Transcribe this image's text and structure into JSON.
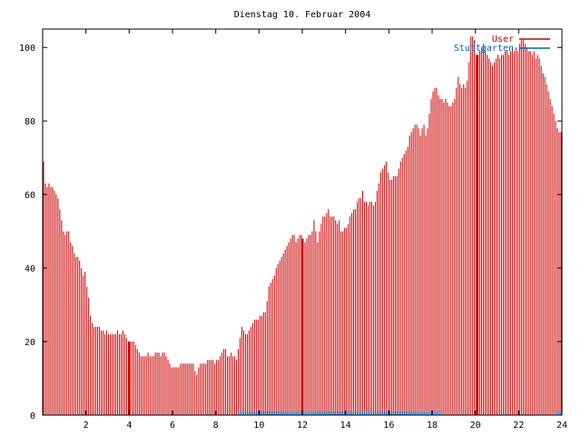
{
  "chart_data": {
    "type": "bar",
    "title": "Dienstag 10. Februar 2004",
    "xlabel": "",
    "ylabel": "",
    "xlim": [
      0,
      24
    ],
    "ylim": [
      0,
      105
    ],
    "x_ticks": [
      "2",
      "4",
      "6",
      "8",
      "10",
      "12",
      "14",
      "16",
      "18",
      "20",
      "22",
      "24"
    ],
    "y_ticks": [
      "0",
      "20",
      "40",
      "60",
      "80",
      "100"
    ],
    "legend_position": "top-right",
    "bar_interval_hours": 0.0833,
    "series": [
      {
        "name": "User",
        "color": "#cc0000",
        "values": [
          69,
          63,
          62,
          63,
          62,
          62,
          61,
          60,
          59,
          56,
          53,
          50,
          49,
          50,
          50,
          47,
          46,
          44,
          43,
          43,
          42,
          40,
          38,
          39,
          35,
          32,
          27,
          25,
          24,
          24,
          24,
          24,
          23,
          23,
          22,
          23,
          22,
          22,
          22,
          22,
          22,
          23,
          22,
          22,
          23,
          22,
          21,
          20,
          20,
          20,
          20,
          19,
          18,
          17,
          16,
          16,
          16,
          16,
          17,
          16,
          16,
          16,
          17,
          17,
          17,
          16,
          17,
          17,
          16,
          15,
          14,
          13,
          13,
          13,
          13,
          13,
          14,
          14,
          14,
          14,
          14,
          14,
          14,
          14,
          12,
          11,
          13,
          14,
          14,
          14,
          14,
          15,
          15,
          15,
          15,
          14,
          15,
          15,
          16,
          17,
          18,
          18,
          16,
          16,
          17,
          16,
          16,
          15,
          18,
          21,
          24,
          23,
          22,
          22,
          23,
          24,
          25,
          26,
          26,
          26,
          27,
          27,
          28,
          28,
          31,
          35,
          36,
          37,
          38,
          40,
          41,
          42,
          43,
          44,
          45,
          46,
          47,
          48,
          49,
          49,
          47,
          48,
          49,
          49,
          48,
          47,
          48,
          49,
          49,
          50,
          53,
          50,
          47,
          50,
          52,
          54,
          54,
          55,
          56,
          54,
          54,
          54,
          53,
          52,
          53,
          50,
          50,
          51,
          51,
          52,
          54,
          55,
          56,
          56,
          58,
          59,
          59,
          61,
          58,
          58,
          57,
          58,
          58,
          57,
          58,
          61,
          63,
          66,
          67,
          68,
          69,
          66,
          64,
          64,
          65,
          65,
          65,
          67,
          69,
          70,
          71,
          72,
          73,
          76,
          77,
          78,
          79,
          79,
          78,
          76,
          78,
          79,
          76,
          78,
          82,
          86,
          88,
          89,
          89,
          87,
          86,
          86,
          85,
          86,
          85,
          84,
          84,
          85,
          86,
          89,
          92,
          90,
          89,
          90,
          89,
          91,
          96,
          103,
          103,
          102,
          98,
          98,
          99,
          100,
          101,
          99,
          98,
          97,
          96,
          95,
          96,
          97,
          98,
          97,
          98,
          98,
          99,
          99,
          98,
          99,
          100,
          99,
          100,
          99,
          101,
          102,
          102,
          101,
          100,
          99,
          99,
          98,
          99,
          97,
          98,
          97,
          95,
          93,
          92,
          90,
          88,
          86,
          84,
          82,
          80,
          78,
          77,
          77
        ]
      },
      {
        "name": "Stuttgarten",
        "color": "#0066cc",
        "values": [
          0,
          0,
          0,
          0,
          0,
          0,
          0,
          0,
          0,
          0,
          0,
          0,
          0,
          0,
          0,
          0,
          0,
          0,
          0,
          0,
          0,
          0,
          0,
          0,
          0,
          0,
          0,
          0,
          0,
          0,
          0,
          0,
          0,
          0,
          0,
          0,
          0,
          0,
          0,
          0,
          0,
          0,
          0,
          0,
          0,
          0,
          0,
          0,
          0,
          0,
          0,
          0,
          0,
          0,
          0,
          0,
          0,
          0,
          0,
          0,
          0,
          0,
          0,
          0,
          0,
          0,
          0,
          0,
          0,
          0,
          0,
          0,
          0,
          0,
          0,
          0,
          0,
          0,
          0,
          0,
          0,
          0,
          0,
          0,
          0,
          0,
          0,
          0,
          0,
          0,
          0,
          0,
          0,
          0,
          0,
          0,
          0,
          0,
          0,
          0,
          0,
          0,
          0,
          0,
          0,
          0,
          0,
          0,
          1,
          1,
          1,
          1,
          1,
          1,
          1,
          1,
          1,
          1,
          1,
          1,
          1,
          1,
          1,
          1,
          1,
          1,
          1,
          1,
          1,
          1,
          1,
          1,
          1,
          1,
          1,
          1,
          1,
          1,
          1,
          1,
          1,
          1,
          1,
          1,
          1,
          1,
          1,
          1,
          1,
          1,
          1,
          1,
          1,
          1,
          1,
          1,
          1,
          1,
          1,
          1,
          1,
          1,
          1,
          1,
          1,
          1,
          1,
          1,
          1,
          1,
          1,
          1,
          1,
          1,
          1,
          1,
          1,
          1,
          1,
          1,
          1,
          1,
          1,
          1,
          1,
          1,
          1,
          1,
          1,
          1,
          1,
          1,
          1,
          1,
          1,
          1,
          1,
          1,
          1,
          1,
          1,
          1,
          1,
          1,
          1,
          1,
          1,
          1,
          1,
          1,
          1,
          1,
          1,
          1,
          1,
          1,
          1,
          1,
          1,
          1,
          1,
          0,
          0,
          0,
          0,
          0,
          0,
          0,
          0,
          0,
          0,
          0,
          0,
          0,
          0,
          0,
          0,
          0,
          0,
          0,
          0,
          0,
          0,
          0,
          0,
          0,
          0,
          0,
          0,
          0,
          0,
          0,
          0,
          0,
          0,
          0,
          0,
          0,
          0,
          0,
          0,
          0,
          0,
          0,
          0,
          0,
          0,
          0,
          0,
          0,
          0,
          0,
          0,
          0,
          0,
          0,
          0,
          0,
          0,
          0,
          0,
          0,
          0,
          0,
          0,
          1,
          1,
          1
        ]
      }
    ],
    "highlight_bars_hours": [
      4.0,
      12.0,
      20.1
    ]
  }
}
